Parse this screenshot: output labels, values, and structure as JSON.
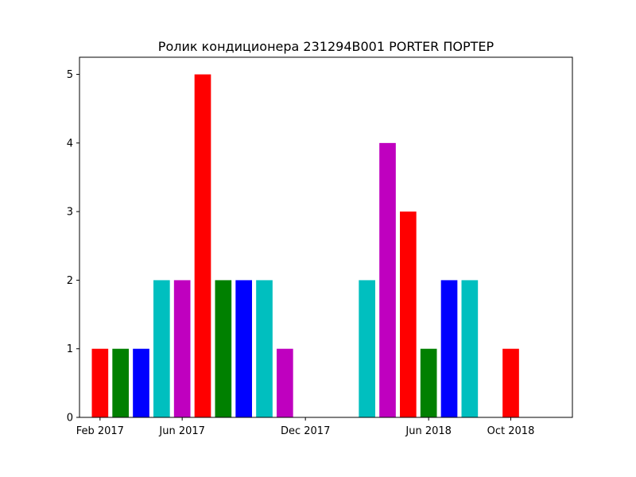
{
  "chart_data": {
    "type": "bar",
    "title": "Ролик кондиционера 231294B001 PORTER ПОРТЕР",
    "xlabel": "",
    "ylabel": "",
    "x_tick_labels": [
      "Feb 2017",
      "Jun 2017",
      "Dec 2017",
      "Jun 2018",
      "Oct 2018"
    ],
    "x_ticks": [
      "2017-02",
      "2017-06",
      "2017-12",
      "2018-06",
      "2018-10"
    ],
    "xlim": [
      "2017-01",
      "2019-01"
    ],
    "y_ticks": [
      0,
      1,
      2,
      3,
      4,
      5
    ],
    "ylim": [
      0,
      5.25
    ],
    "grid": false,
    "categories": [
      "2017-02",
      "2017-03",
      "2017-04",
      "2017-05",
      "2017-06",
      "2017-07",
      "2017-08",
      "2017-09",
      "2017-10",
      "2017-11",
      "2017-12",
      "2018-01",
      "2018-02",
      "2018-03",
      "2018-04",
      "2018-05",
      "2018-06",
      "2018-07",
      "2018-08",
      "2018-09",
      "2018-10"
    ],
    "values": [
      1,
      1,
      1,
      2,
      2,
      5,
      2,
      2,
      2,
      1,
      0,
      0,
      0,
      2,
      4,
      3,
      1,
      2,
      2,
      0,
      1
    ],
    "bar_colors": [
      "#ff0000",
      "#008000",
      "#0000ff",
      "#00bfbf",
      "#bf00bf"
    ]
  }
}
